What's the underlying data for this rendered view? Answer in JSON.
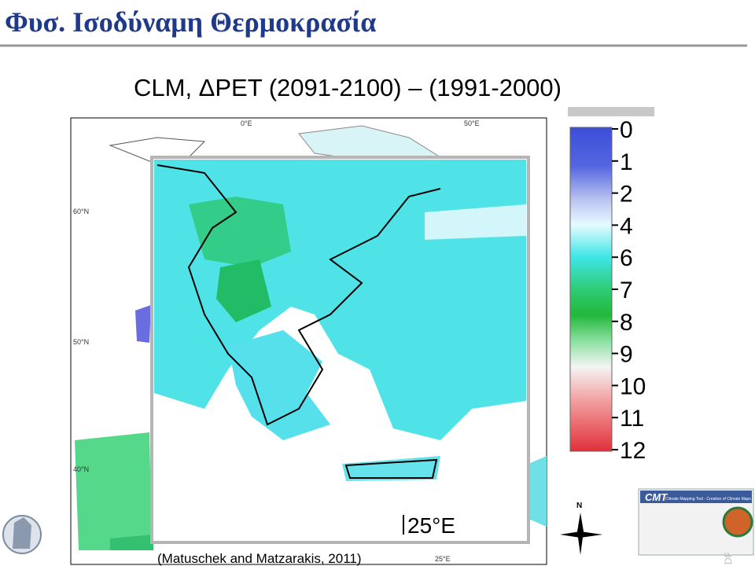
{
  "header": {
    "title": "Φυσ. Ισοδύναμη Θερμοκρασία",
    "subtitle": "CLM, ΔPET (2091-2100) – (1991-2000)"
  },
  "map": {
    "labels": [
      "0°E",
      "50°E",
      "60°N",
      "50°N",
      "40°N",
      "25°E"
    ],
    "inset_label": "25°E",
    "citation": "(Matuschek and Matzarakis, 2011)"
  },
  "legend": {
    "labels": [
      "0",
      "1",
      "2",
      "4",
      "6",
      "7",
      "8",
      "9",
      "10",
      "11",
      "12"
    ]
  },
  "compass": "N",
  "thumbnail": {
    "title": "CMT",
    "subtitle": "Climate Mapping Tool - Creation of Climate Maps"
  },
  "corner": "DF"
}
